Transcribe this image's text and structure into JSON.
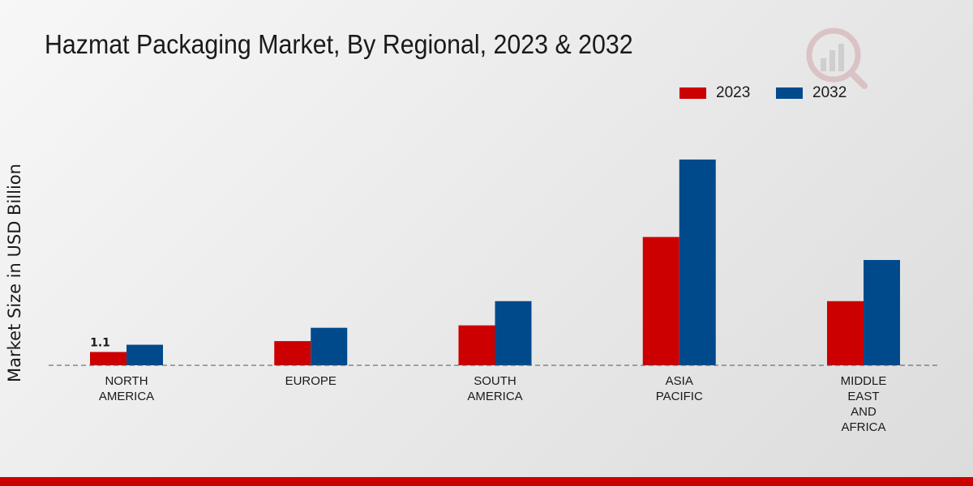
{
  "colors": {
    "s2023": "#cc0000",
    "s2032": "#004a8c",
    "baseline": "#555555"
  },
  "icons": {
    "watermark": "research-logo-icon"
  },
  "chart_data": {
    "type": "bar",
    "title": "Hazmat Packaging Market, By Regional, 2023 & 2032",
    "xlabel": "",
    "ylabel": "Market Size in USD Billion",
    "ylim": [
      0,
      18
    ],
    "categories": [
      [
        "NORTH",
        "AMERICA"
      ],
      [
        "EUROPE"
      ],
      [
        "SOUTH",
        "AMERICA"
      ],
      [
        "ASIA",
        "PACIFIC"
      ],
      [
        "MIDDLE",
        "EAST",
        "AND",
        "AFRICA"
      ]
    ],
    "series": [
      {
        "name": "2023",
        "values": [
          1.1,
          2.0,
          3.3,
          10.6,
          5.3
        ]
      },
      {
        "name": "2032",
        "values": [
          1.7,
          3.1,
          5.3,
          17.0,
          8.7
        ]
      }
    ],
    "data_labels": [
      {
        "series": 0,
        "index": 0,
        "text": "1.1"
      }
    ],
    "legend": "top-right"
  }
}
